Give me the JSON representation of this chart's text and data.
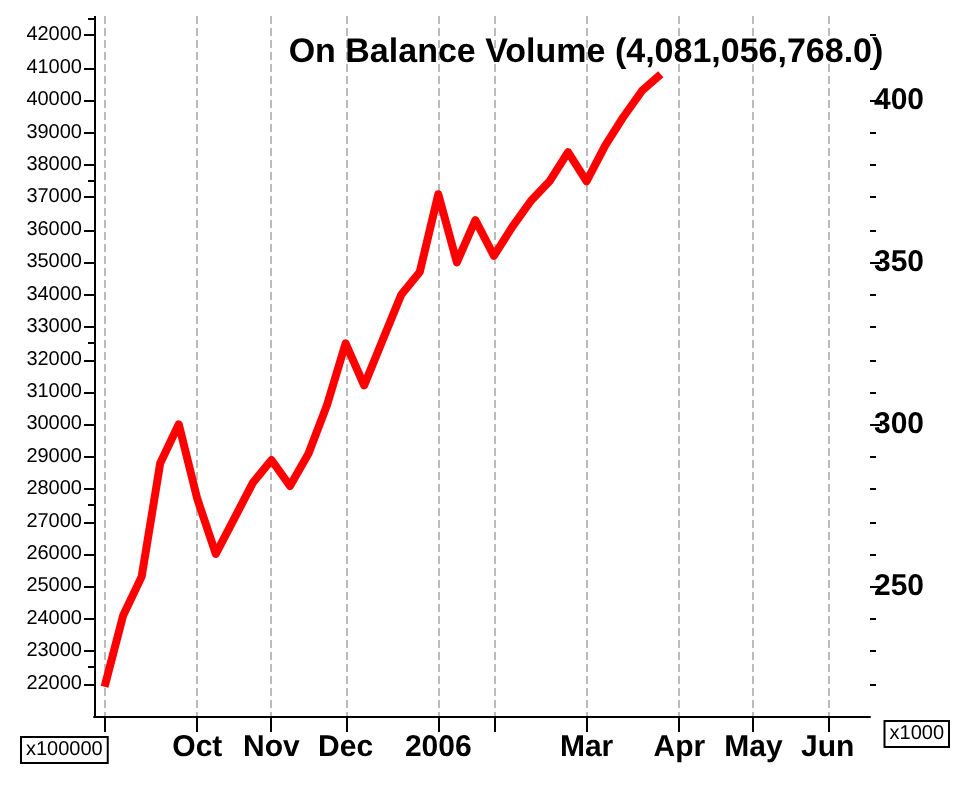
{
  "chart_data": {
    "type": "line",
    "title": "On Balance Volume (4,081,056,768.0)",
    "x": [
      "2005-09-01",
      "2005-09-08",
      "2005-09-15",
      "2005-09-22",
      "2005-09-29",
      "2005-10-06",
      "2005-10-13",
      "2005-10-20",
      "2005-10-27",
      "2005-11-03",
      "2005-11-10",
      "2005-11-17",
      "2005-11-24",
      "2005-12-01",
      "2005-12-08",
      "2005-12-15",
      "2005-12-22",
      "2005-12-29",
      "2006-01-05",
      "2006-01-12",
      "2006-01-19",
      "2006-01-26",
      "2006-02-02",
      "2006-02-09",
      "2006-02-16",
      "2006-02-23",
      "2006-03-02",
      "2006-03-09",
      "2006-03-16",
      "2006-03-23",
      "2006-03-30"
    ],
    "series": [
      {
        "color": "#ff0000",
        "values": [
          21900,
          24100,
          25300,
          28800,
          30000,
          27700,
          26000,
          27100,
          28200,
          28900,
          28100,
          29100,
          30600,
          32500,
          31200,
          32600,
          34000,
          34700,
          37100,
          35000,
          36300,
          35200,
          36100,
          36900,
          37500,
          38400,
          37500,
          38600,
          39500,
          40300,
          40800
        ]
      }
    ],
    "xlim": [
      "2005-08-28",
      "2006-06-17"
    ],
    "xticks": [
      {
        "value": "2005-09-01",
        "label": null
      },
      {
        "value": "2005-10-06",
        "label": "Oct"
      },
      {
        "value": "2005-11-03",
        "label": "Nov"
      },
      {
        "value": "2005-12-01",
        "label": "Dec"
      },
      {
        "value": "2006-01-05",
        "label": "2006"
      },
      {
        "value": "2006-01-26",
        "label": null
      },
      {
        "value": "2006-03-02",
        "label": "Mar"
      },
      {
        "value": "2006-04-06",
        "label": "Apr"
      },
      {
        "value": "2006-05-04",
        "label": "May"
      },
      {
        "value": "2006-06-01",
        "label": "Jun"
      }
    ],
    "ylim": [
      21000,
      42600
    ],
    "yticks": [
      22000,
      23000,
      24000,
      25000,
      26000,
      27000,
      28000,
      29000,
      30000,
      31000,
      32000,
      33000,
      34000,
      35000,
      36000,
      37000,
      38000,
      39000,
      40000,
      41000,
      42000
    ],
    "y2lim": [
      210,
      426
    ],
    "y2ticks": [
      250,
      300,
      350,
      400
    ],
    "annotations": [
      "x100000",
      "x1000"
    ],
    "grid": "x",
    "marker": "none",
    "line_style": "solid"
  }
}
